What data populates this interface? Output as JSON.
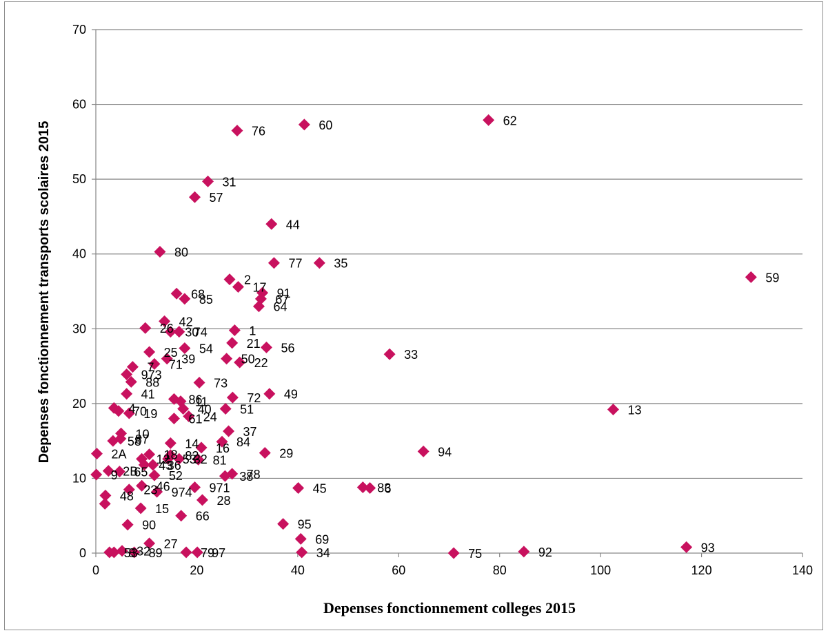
{
  "chart_data": {
    "type": "scatter",
    "title": "",
    "xlabel": "Depenses fonctionnement colleges 2015",
    "ylabel": "Depenses fonctionnement transports scolaires 2015",
    "xlim": [
      0,
      140
    ],
    "ylim": [
      0,
      70
    ],
    "xticks": [
      0,
      20,
      40,
      60,
      80,
      100,
      120,
      140
    ],
    "yticks": [
      0,
      10,
      20,
      30,
      40,
      50,
      60,
      70
    ],
    "grid": "horizontal",
    "marker_color": "#c8115e",
    "points": [
      {
        "label": "62",
        "x": 77.8,
        "y": 57.9
      },
      {
        "label": "60",
        "x": 41.3,
        "y": 57.3
      },
      {
        "label": "76",
        "x": 28.0,
        "y": 56.5
      },
      {
        "label": "31",
        "x": 22.2,
        "y": 49.7
      },
      {
        "label": "57",
        "x": 19.6,
        "y": 47.6
      },
      {
        "label": "44",
        "x": 34.8,
        "y": 44.0
      },
      {
        "label": "80",
        "x": 12.7,
        "y": 40.3
      },
      {
        "label": "77",
        "x": 35.3,
        "y": 38.8
      },
      {
        "label": "35",
        "x": 44.3,
        "y": 38.8
      },
      {
        "label": "59",
        "x": 129.8,
        "y": 36.9
      },
      {
        "label": "2",
        "x": 26.5,
        "y": 36.6
      },
      {
        "label": "17",
        "x": 28.2,
        "y": 35.6
      },
      {
        "label": "91",
        "x": 33.0,
        "y": 34.8
      },
      {
        "label": "68",
        "x": 16.0,
        "y": 34.7
      },
      {
        "label": "85",
        "x": 17.6,
        "y": 34.0
      },
      {
        "label": "67",
        "x": 32.7,
        "y": 34.0
      },
      {
        "label": "64",
        "x": 32.3,
        "y": 33.0
      },
      {
        "label": "42",
        "x": 13.6,
        "y": 31.0
      },
      {
        "label": "26",
        "x": 9.8,
        "y": 30.1
      },
      {
        "label": "30",
        "x": 14.8,
        "y": 29.6
      },
      {
        "label": "74",
        "x": 16.5,
        "y": 29.6
      },
      {
        "label": "1",
        "x": 27.5,
        "y": 29.8
      },
      {
        "label": "21",
        "x": 27.0,
        "y": 28.1
      },
      {
        "label": "56",
        "x": 33.8,
        "y": 27.5
      },
      {
        "label": "54",
        "x": 17.6,
        "y": 27.4
      },
      {
        "label": "25",
        "x": 10.6,
        "y": 26.9
      },
      {
        "label": "33",
        "x": 58.2,
        "y": 26.6
      },
      {
        "label": "39",
        "x": 14.1,
        "y": 26.0
      },
      {
        "label": "50",
        "x": 25.9,
        "y": 26.0
      },
      {
        "label": "71",
        "x": 11.6,
        "y": 25.3
      },
      {
        "label": "22",
        "x": 28.5,
        "y": 25.5
      },
      {
        "label": "7",
        "x": 7.3,
        "y": 24.9
      },
      {
        "label": "973",
        "x": 6.1,
        "y": 23.9
      },
      {
        "label": "88",
        "x": 7.0,
        "y": 22.9
      },
      {
        "label": "73",
        "x": 20.5,
        "y": 22.8
      },
      {
        "label": "41",
        "x": 6.1,
        "y": 21.3
      },
      {
        "label": "49",
        "x": 34.4,
        "y": 21.3
      },
      {
        "label": "72",
        "x": 27.1,
        "y": 20.8
      },
      {
        "label": "86",
        "x": 15.5,
        "y": 20.6
      },
      {
        "label": "11",
        "x": 16.8,
        "y": 20.3
      },
      {
        "label": "4",
        "x": 3.6,
        "y": 19.4
      },
      {
        "label": "70",
        "x": 4.5,
        "y": 19.0
      },
      {
        "label": "40",
        "x": 17.3,
        "y": 19.3
      },
      {
        "label": "51",
        "x": 25.7,
        "y": 19.3
      },
      {
        "label": "13",
        "x": 102.5,
        "y": 19.2
      },
      {
        "label": "19",
        "x": 6.6,
        "y": 18.7
      },
      {
        "label": "61",
        "x": 15.5,
        "y": 18.0
      },
      {
        "label": "24",
        "x": 18.4,
        "y": 18.3
      },
      {
        "label": "37",
        "x": 26.3,
        "y": 16.3
      },
      {
        "label": "10",
        "x": 5.0,
        "y": 16.0
      },
      {
        "label": "84",
        "x": 25.0,
        "y": 14.9
      },
      {
        "label": "58",
        "x": 3.4,
        "y": 15.0
      },
      {
        "label": "87",
        "x": 4.9,
        "y": 15.3
      },
      {
        "label": "14",
        "x": 14.8,
        "y": 14.7
      },
      {
        "label": "16",
        "x": 20.9,
        "y": 14.1
      },
      {
        "label": "94",
        "x": 64.9,
        "y": 13.6
      },
      {
        "label": "29",
        "x": 33.5,
        "y": 13.4
      },
      {
        "label": "18",
        "x": 10.6,
        "y": 13.2
      },
      {
        "label": "12",
        "x": 9.1,
        "y": 12.6
      },
      {
        "label": "82",
        "x": 14.8,
        "y": 13.1
      },
      {
        "label": "53",
        "x": 14.3,
        "y": 12.6
      },
      {
        "label": "32",
        "x": 16.5,
        "y": 12.6
      },
      {
        "label": "2A",
        "x": 0.2,
        "y": 13.3
      },
      {
        "label": "81",
        "x": 20.3,
        "y": 12.5
      },
      {
        "label": "36",
        "x": 11.3,
        "y": 11.8
      },
      {
        "label": "43",
        "x": 9.6,
        "y": 11.8
      },
      {
        "label": "2B",
        "x": 2.5,
        "y": 11.0
      },
      {
        "label": "65",
        "x": 4.7,
        "y": 10.9
      },
      {
        "label": "52",
        "x": 11.6,
        "y": 10.4
      },
      {
        "label": "9",
        "x": 0.1,
        "y": 10.5
      },
      {
        "label": "78",
        "x": 27.0,
        "y": 10.6
      },
      {
        "label": "38",
        "x": 25.6,
        "y": 10.3
      },
      {
        "label": "46",
        "x": 9.1,
        "y": 9.0
      },
      {
        "label": "971",
        "x": 19.6,
        "y": 8.8
      },
      {
        "label": "45",
        "x": 40.1,
        "y": 8.7
      },
      {
        "label": "83",
        "x": 52.9,
        "y": 8.8
      },
      {
        "label": "6",
        "x": 54.3,
        "y": 8.7
      },
      {
        "label": "23",
        "x": 6.6,
        "y": 8.5
      },
      {
        "label": "974",
        "x": 12.1,
        "y": 8.2
      },
      {
        "label": "48",
        "x": 1.9,
        "y": 7.7
      },
      {
        "label": "28",
        "x": 21.1,
        "y": 7.1
      },
      {
        "label": "39b",
        "x": 1.8,
        "y": 6.6
      },
      {
        "label": "15",
        "x": 8.9,
        "y": 6.0
      },
      {
        "label": "66",
        "x": 16.9,
        "y": 5.0
      },
      {
        "label": "95",
        "x": 37.1,
        "y": 3.9
      },
      {
        "label": "90",
        "x": 6.3,
        "y": 3.8
      },
      {
        "label": "69",
        "x": 40.6,
        "y": 1.9
      },
      {
        "label": "27",
        "x": 10.6,
        "y": 1.3
      },
      {
        "label": "93",
        "x": 117.0,
        "y": 0.8
      },
      {
        "label": "53b",
        "x": 2.7,
        "y": 0.1
      },
      {
        "label": "8",
        "x": 3.6,
        "y": 0.1
      },
      {
        "label": "32b",
        "x": 5.2,
        "y": 0.3
      },
      {
        "label": "89",
        "x": 7.6,
        "y": 0.1
      },
      {
        "label": "79",
        "x": 17.9,
        "y": 0.1
      },
      {
        "label": "97",
        "x": 20.1,
        "y": 0.1
      },
      {
        "label": "34",
        "x": 40.8,
        "y": 0.1
      },
      {
        "label": "75",
        "x": 70.9,
        "y": 0.0
      },
      {
        "label": "92",
        "x": 84.8,
        "y": 0.2
      }
    ]
  },
  "point_labels_display": {
    "62": "62",
    "60": "60",
    "76": "76",
    "31": "31",
    "57": "57",
    "44": "44",
    "80": "80",
    "77": "77",
    "35": "35",
    "59": "59",
    "2": "2",
    "17": "17",
    "91": "91",
    "68": "68",
    "85": "85",
    "67": "67",
    "64": "64",
    "42": "42",
    "26": "26",
    "30": "30",
    "74": "74",
    "1": "1",
    "21": "21",
    "56": "56",
    "54": "54",
    "25": "25",
    "33": "33",
    "39": "39",
    "50": "50",
    "71": "71",
    "22": "22",
    "7": "7",
    "973": "973",
    "88": "88",
    "73": "73",
    "41": "41",
    "49": "49",
    "72": "72",
    "86": "86",
    "11": "11",
    "4": "4",
    "70": "70",
    "40": "40",
    "51": "51",
    "13": "13",
    "19": "19",
    "61": "61",
    "24": "24",
    "37": "37",
    "10": "10",
    "84": "84",
    "58": "58",
    "87": "87",
    "14": "14",
    "16": "16",
    "94": "94",
    "29": "29",
    "18": "18",
    "12": "12",
    "82": "82",
    "53": "53",
    "32": "32",
    "2A": "2A",
    "81": "81",
    "36": "36",
    "43": "43",
    "2B": "2B",
    "65": "65",
    "52": "52",
    "9": "9",
    "78": "78",
    "38": "38",
    "46": "46",
    "971": "971",
    "45": "45",
    "83": "83",
    "6": "6",
    "23": "23",
    "974": "974",
    "48": "48",
    "28": "28",
    "39b": "",
    "15": "15",
    "66": "66",
    "95": "95",
    "90": "90",
    "69": "69",
    "27": "27",
    "93": "93",
    "53b": "53",
    "8": "8",
    "32b": "32",
    "89": "89",
    "79": "79",
    "97": "97",
    "34": "34",
    "75": "75",
    "92": "92"
  }
}
